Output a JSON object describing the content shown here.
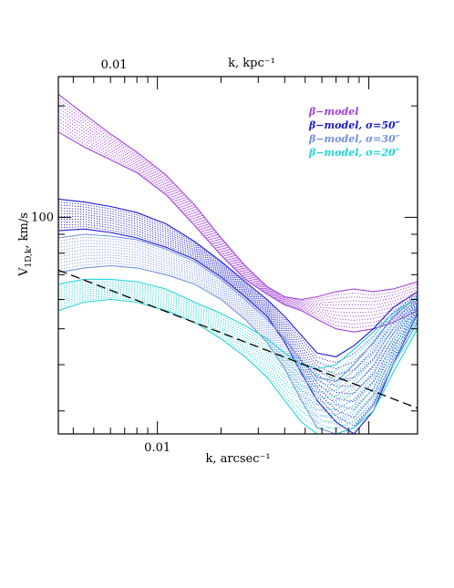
{
  "chart_data": {
    "type": "area",
    "title": "",
    "xlabel": "k, arcsec⁻¹",
    "x2label": "k, kpc⁻¹",
    "ylabel_main": "V",
    "ylabel_sub": "1D,k",
    "ylabel_rest": ", km/s",
    "xscale": "log",
    "yscale": "log",
    "xlim": [
      0.0034,
      0.17
    ],
    "ylim": [
      26,
      240
    ],
    "x_ticklabels": [
      {
        "value": 0.01,
        "label": "0.01"
      }
    ],
    "x2_ticklabels": [
      {
        "value": 0.01,
        "label": "0.01"
      }
    ],
    "y_ticklabels": [
      {
        "value": 100,
        "label": "100"
      }
    ],
    "grid": false,
    "legend_position": "top-right",
    "series": [
      {
        "name": "β−model",
        "color": "#a040d8",
        "x": [
          0.0034,
          0.0045,
          0.006,
          0.008,
          0.011,
          0.015,
          0.02,
          0.026,
          0.033,
          0.04,
          0.048,
          0.057,
          0.07,
          0.085,
          0.105,
          0.13,
          0.17
        ],
        "upper": [
          215,
          190,
          168,
          150,
          130,
          108,
          88,
          74,
          65,
          61,
          60,
          61,
          63,
          64,
          63,
          64,
          67
        ],
        "lower": [
          170,
          155,
          143,
          132,
          115,
          95,
          79,
          68,
          62,
          58,
          56,
          53,
          50,
          49,
          50,
          52,
          56
        ]
      },
      {
        "name": "β−model, σ=50″",
        "color": "#1818d0",
        "x": [
          0.0034,
          0.0045,
          0.006,
          0.008,
          0.011,
          0.015,
          0.02,
          0.026,
          0.033,
          0.04,
          0.048,
          0.057,
          0.07,
          0.085,
          0.105,
          0.13,
          0.17
        ],
        "upper": [
          112,
          110,
          107,
          103,
          96,
          86,
          76,
          67,
          60,
          54,
          48,
          43,
          42,
          45,
          50,
          57,
          63
        ],
        "lower": [
          92,
          93,
          91,
          88,
          83,
          77,
          69,
          61,
          54,
          46,
          38,
          32,
          28,
          26,
          30,
          40,
          55
        ]
      },
      {
        "name": "β−model, σ=30″",
        "color": "#6f8fe0",
        "x": [
          0.0034,
          0.0045,
          0.006,
          0.008,
          0.011,
          0.015,
          0.02,
          0.026,
          0.033,
          0.04,
          0.048,
          0.057,
          0.07,
          0.085,
          0.105,
          0.13,
          0.17
        ],
        "upper": [
          88,
          90,
          89,
          87,
          82,
          76,
          68,
          60,
          53,
          47,
          41,
          37,
          36,
          40,
          46,
          54,
          61
        ],
        "lower": [
          71,
          73,
          74,
          73,
          70,
          66,
          60,
          53,
          46,
          39,
          32,
          27,
          26,
          27,
          31,
          40,
          52
        ]
      },
      {
        "name": "β−model, σ=20″",
        "color": "#22d4d4",
        "x": [
          0.0034,
          0.0045,
          0.006,
          0.008,
          0.011,
          0.015,
          0.02,
          0.026,
          0.033,
          0.04,
          0.048,
          0.057,
          0.07,
          0.085,
          0.105,
          0.13,
          0.17
        ],
        "upper": [
          66,
          68,
          68,
          67,
          64,
          59,
          55,
          51,
          47,
          43,
          40,
          39,
          40,
          44,
          49,
          55,
          61
        ],
        "lower": [
          56,
          59,
          60,
          59,
          56,
          52,
          47,
          42,
          37,
          32,
          28,
          26,
          26,
          27,
          30,
          38,
          50
        ]
      }
    ],
    "reference_line": {
      "style": "dashed",
      "color": "#000000",
      "x": [
        0.0034,
        0.17
      ],
      "y": [
        72,
        30.5
      ]
    }
  }
}
